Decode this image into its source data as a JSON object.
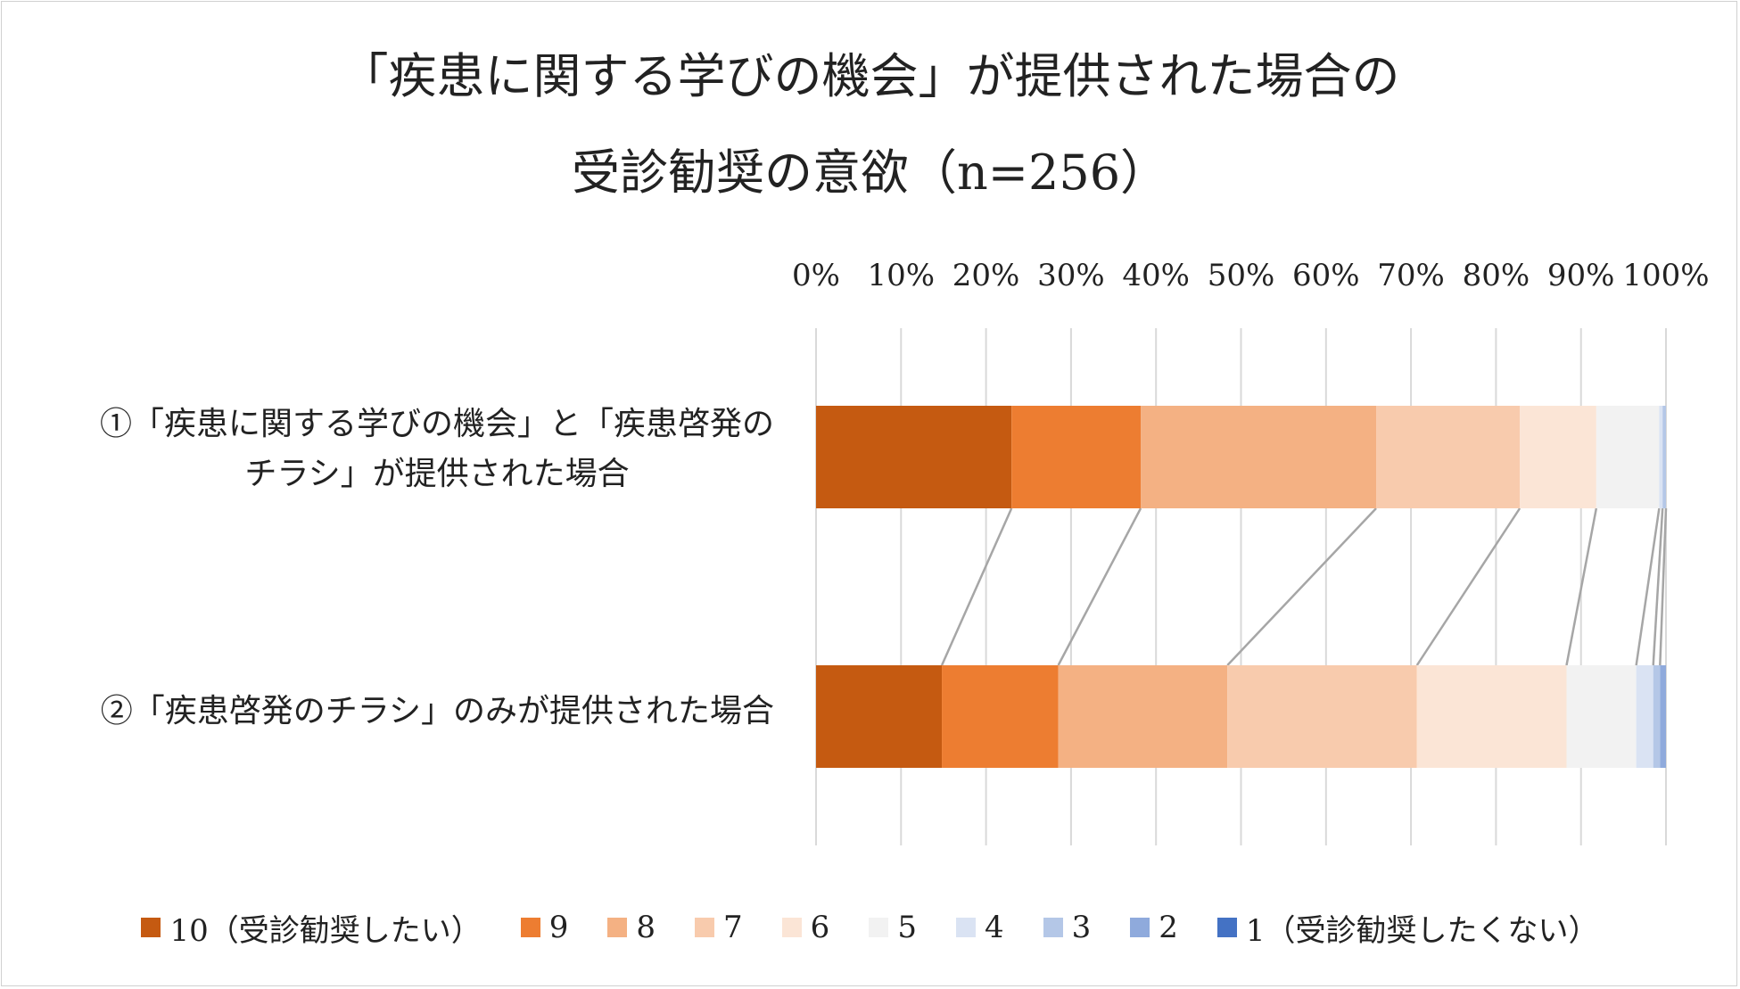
{
  "chart_data": {
    "type": "bar",
    "orientation": "horizontal",
    "stacked": "percent",
    "title_lines": [
      "「疾患に関する学びの機会」が提供された場合の",
      "受診勧奨の意欲（n=256）"
    ],
    "category_lines": [
      [
        "①「疾患に関する学びの機会」と「疾患啓発の",
        "チラシ」が提供された場合"
      ],
      [
        "②「疾患啓発のチラシ」のみが提供された場合"
      ]
    ],
    "x_ticks": [
      "0%",
      "10%",
      "20%",
      "30%",
      "40%",
      "50%",
      "60%",
      "70%",
      "80%",
      "90%",
      "100%"
    ],
    "xlim": [
      0,
      100
    ],
    "grid": true,
    "legend_position": "bottom",
    "series_connector_lines": true,
    "series": [
      {
        "name": "10（受診勧奨したい）",
        "color": "#c55a11",
        "values": [
          23.0,
          14.8
        ]
      },
      {
        "name": "9",
        "color": "#ed7d31",
        "values": [
          15.2,
          13.7
        ]
      },
      {
        "name": "8",
        "color": "#f4b183",
        "values": [
          27.7,
          19.9
        ]
      },
      {
        "name": "7",
        "color": "#f8cbad",
        "values": [
          16.9,
          22.3
        ]
      },
      {
        "name": "6",
        "color": "#fbe5d6",
        "values": [
          9.0,
          17.6
        ]
      },
      {
        "name": "5",
        "color": "#f2f2f2",
        "values": [
          7.4,
          8.2
        ]
      },
      {
        "name": "4",
        "color": "#dae3f3",
        "values": [
          0.4,
          2.0
        ]
      },
      {
        "name": "3",
        "color": "#b4c7e7",
        "values": [
          0.4,
          0.8
        ]
      },
      {
        "name": "2",
        "color": "#8faadc",
        "values": [
          0.0,
          0.7
        ]
      },
      {
        "name": "1（受診勧奨したくない）",
        "color": "#4472c4",
        "values": [
          0.0,
          0.0
        ]
      }
    ]
  }
}
